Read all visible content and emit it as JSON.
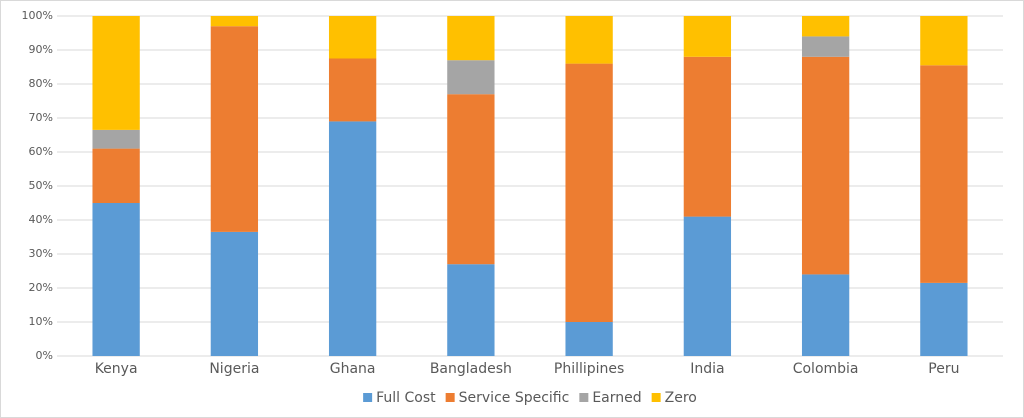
{
  "chart_data": {
    "type": "stacked_bar",
    "categories": [
      "Kenya",
      "Nigeria",
      "Ghana",
      "Bangladesh",
      "Phillipines",
      "India",
      "Colombia",
      "Peru"
    ],
    "series": [
      {
        "name": "Full Cost",
        "color": "#5b9bd5",
        "values": [
          45,
          36.5,
          69,
          27,
          10,
          41,
          24,
          21.5
        ]
      },
      {
        "name": "Service Specific",
        "color": "#ed7d31",
        "values": [
          16,
          60.5,
          18.5,
          50,
          76,
          47,
          64,
          64
        ]
      },
      {
        "name": "Earned",
        "color": "#a5a5a5",
        "values": [
          5.5,
          0,
          0,
          10,
          0,
          0,
          6,
          0
        ]
      },
      {
        "name": "Zero",
        "color": "#ffc000",
        "values": [
          33.5,
          3,
          12.5,
          13,
          14,
          12,
          6,
          14.5
        ]
      }
    ],
    "ylim": [
      0,
      100
    ],
    "yticks": [
      {
        "value": 0,
        "label": "0%"
      },
      {
        "value": 10,
        "label": "10%"
      },
      {
        "value": 20,
        "label": "20%"
      },
      {
        "value": 30,
        "label": "30%"
      },
      {
        "value": 40,
        "label": "40%"
      },
      {
        "value": 50,
        "label": "50%"
      },
      {
        "value": 60,
        "label": "60%"
      },
      {
        "value": 70,
        "label": "70%"
      },
      {
        "value": 80,
        "label": "80%"
      },
      {
        "value": 90,
        "label": "90%"
      },
      {
        "value": 100,
        "label": "100%"
      }
    ],
    "grid": true,
    "legend": "bottom"
  }
}
